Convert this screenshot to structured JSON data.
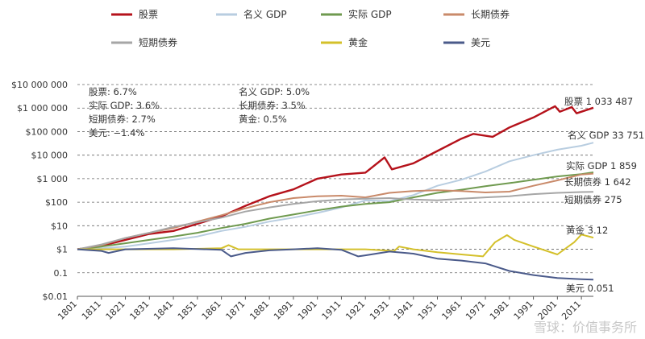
{
  "chart_data": {
    "type": "line",
    "y_scale": "log",
    "ylim": [
      0.01,
      10000000
    ],
    "xlim": [
      1801,
      2016
    ],
    "grid": true,
    "legend_position": "top",
    "y_tick_labels": [
      "$10 000 000",
      "$1 000 000",
      "$100 000",
      "$10 000",
      "$1 000",
      "$100",
      "$10",
      "$1",
      "0.1",
      "$0.01"
    ],
    "x_tick_labels": [
      "1801",
      "1811",
      "1821",
      "1831",
      "1841",
      "1851",
      "1861",
      "1871",
      "1881",
      "1891",
      "1901",
      "1911",
      "1921",
      "1931",
      "1941",
      "1951",
      "1961",
      "1971",
      "1981",
      "1991",
      "2001",
      "2011"
    ],
    "legend": [
      {
        "name": "股票",
        "color": "#b5121b"
      },
      {
        "name": "名义 GDP",
        "color": "#b8cde0"
      },
      {
        "name": "实际 GDP",
        "color": "#6f9a4f"
      },
      {
        "name": "长期债券",
        "color": "#c98a6a"
      },
      {
        "name": "短期债券",
        "color": "#a6a6a6"
      },
      {
        "name": "黄金",
        "color": "#d4c02a"
      },
      {
        "name": "美元",
        "color": "#4a5a8a"
      }
    ],
    "annotations_left": [
      "股票: 6.7%",
      "实际 GDP: 3.6%",
      "短期债券: 2.7%",
      "美元: −1.4%"
    ],
    "annotations_middle": [
      "名义 GDP: 5.0%",
      "长期债券: 3.5%",
      "黄金: 0.5%"
    ],
    "series": [
      {
        "name": "股票",
        "color": "#b5121b",
        "end_label": "股票 1 033 487",
        "points": [
          [
            1801,
            1
          ],
          [
            1811,
            1.4
          ],
          [
            1821,
            2.5
          ],
          [
            1831,
            4.5
          ],
          [
            1841,
            6
          ],
          [
            1851,
            12
          ],
          [
            1861,
            25
          ],
          [
            1871,
            70
          ],
          [
            1881,
            180
          ],
          [
            1891,
            350
          ],
          [
            1901,
            1000
          ],
          [
            1911,
            1500
          ],
          [
            1921,
            1800
          ],
          [
            1929,
            8000
          ],
          [
            1932,
            2500
          ],
          [
            1941,
            4500
          ],
          [
            1951,
            15000
          ],
          [
            1961,
            50000
          ],
          [
            1966,
            80000
          ],
          [
            1974,
            60000
          ],
          [
            1981,
            150000
          ],
          [
            1991,
            400000
          ],
          [
            2000,
            1200000
          ],
          [
            2002,
            700000
          ],
          [
            2007,
            1100000
          ],
          [
            2009,
            600000
          ],
          [
            2016,
            1033487
          ]
        ]
      },
      {
        "name": "名义 GDP",
        "color": "#b8cde0",
        "end_label": "名义 GDP 33 751",
        "points": [
          [
            1801,
            1
          ],
          [
            1811,
            1.1
          ],
          [
            1821,
            1.3
          ],
          [
            1831,
            1.8
          ],
          [
            1841,
            2.5
          ],
          [
            1851,
            3.5
          ],
          [
            1861,
            6
          ],
          [
            1871,
            9
          ],
          [
            1881,
            15
          ],
          [
            1891,
            22
          ],
          [
            1901,
            35
          ],
          [
            1911,
            60
          ],
          [
            1921,
            120
          ],
          [
            1931,
            110
          ],
          [
            1941,
            200
          ],
          [
            1951,
            500
          ],
          [
            1961,
            900
          ],
          [
            1971,
            2000
          ],
          [
            1981,
            5500
          ],
          [
            1991,
            10000
          ],
          [
            2001,
            17000
          ],
          [
            2011,
            25000
          ],
          [
            2016,
            33751
          ]
        ]
      },
      {
        "name": "实际 GDP",
        "color": "#6f9a4f",
        "end_label": "实际 GDP 1 859",
        "points": [
          [
            1801,
            1
          ],
          [
            1811,
            1.3
          ],
          [
            1821,
            1.8
          ],
          [
            1831,
            2.5
          ],
          [
            1841,
            3.5
          ],
          [
            1851,
            5
          ],
          [
            1861,
            8
          ],
          [
            1871,
            12
          ],
          [
            1881,
            20
          ],
          [
            1891,
            30
          ],
          [
            1901,
            45
          ],
          [
            1911,
            65
          ],
          [
            1921,
            85
          ],
          [
            1931,
            100
          ],
          [
            1941,
            160
          ],
          [
            1951,
            250
          ],
          [
            1961,
            340
          ],
          [
            1971,
            480
          ],
          [
            1981,
            650
          ],
          [
            1991,
            900
          ],
          [
            2001,
            1250
          ],
          [
            2011,
            1550
          ],
          [
            2016,
            1859
          ]
        ]
      },
      {
        "name": "长期债券",
        "color": "#c98a6a",
        "end_label": "长期债券 1 642",
        "points": [
          [
            1801,
            1
          ],
          [
            1811,
            1.5
          ],
          [
            1821,
            3
          ],
          [
            1831,
            5
          ],
          [
            1841,
            8
          ],
          [
            1851,
            15
          ],
          [
            1861,
            28
          ],
          [
            1871,
            55
          ],
          [
            1881,
            100
          ],
          [
            1891,
            150
          ],
          [
            1901,
            180
          ],
          [
            1911,
            190
          ],
          [
            1921,
            160
          ],
          [
            1931,
            250
          ],
          [
            1941,
            300
          ],
          [
            1951,
            320
          ],
          [
            1961,
            300
          ],
          [
            1971,
            260
          ],
          [
            1981,
            280
          ],
          [
            1991,
            500
          ],
          [
            2001,
            850
          ],
          [
            2011,
            1500
          ],
          [
            2016,
            1642
          ]
        ]
      },
      {
        "name": "短期债券",
        "color": "#a6a6a6",
        "end_label": "短期债券 275",
        "points": [
          [
            1801,
            1
          ],
          [
            1811,
            1.6
          ],
          [
            1821,
            3
          ],
          [
            1831,
            5
          ],
          [
            1841,
            9
          ],
          [
            1851,
            14
          ],
          [
            1861,
            22
          ],
          [
            1871,
            40
          ],
          [
            1881,
            60
          ],
          [
            1891,
            85
          ],
          [
            1901,
            110
          ],
          [
            1911,
            130
          ],
          [
            1921,
            140
          ],
          [
            1931,
            150
          ],
          [
            1941,
            130
          ],
          [
            1951,
            120
          ],
          [
            1961,
            140
          ],
          [
            1971,
            160
          ],
          [
            1981,
            180
          ],
          [
            1991,
            220
          ],
          [
            2001,
            250
          ],
          [
            2011,
            270
          ],
          [
            2016,
            275
          ]
        ]
      },
      {
        "name": "黄金",
        "color": "#d4c02a",
        "end_label": "黄金 3.12",
        "points": [
          [
            1801,
            1
          ],
          [
            1821,
            1
          ],
          [
            1841,
            1
          ],
          [
            1861,
            1.1
          ],
          [
            1864,
            1.5
          ],
          [
            1868,
            1
          ],
          [
            1881,
            1
          ],
          [
            1901,
            1
          ],
          [
            1921,
            1
          ],
          [
            1933,
            0.85
          ],
          [
            1935,
            1.3
          ],
          [
            1941,
            1
          ],
          [
            1951,
            0.75
          ],
          [
            1961,
            0.6
          ],
          [
            1970,
            0.5
          ],
          [
            1975,
            2
          ],
          [
            1980,
            4
          ],
          [
            1983,
            2.5
          ],
          [
            1991,
            1.3
          ],
          [
            2001,
            0.6
          ],
          [
            2008,
            2
          ],
          [
            2011,
            4.2
          ],
          [
            2016,
            3.12
          ]
        ]
      },
      {
        "name": "美元",
        "color": "#4a5a8a",
        "end_label": "美元 0.051",
        "points": [
          [
            1801,
            1
          ],
          [
            1811,
            0.85
          ],
          [
            1814,
            0.7
          ],
          [
            1821,
            1
          ],
          [
            1841,
            1.1
          ],
          [
            1861,
            0.95
          ],
          [
            1865,
            0.5
          ],
          [
            1871,
            0.7
          ],
          [
            1881,
            0.9
          ],
          [
            1891,
            1
          ],
          [
            1901,
            1.1
          ],
          [
            1911,
            0.95
          ],
          [
            1918,
            0.5
          ],
          [
            1921,
            0.55
          ],
          [
            1931,
            0.8
          ],
          [
            1941,
            0.65
          ],
          [
            1951,
            0.4
          ],
          [
            1961,
            0.33
          ],
          [
            1971,
            0.25
          ],
          [
            1981,
            0.12
          ],
          [
            1991,
            0.08
          ],
          [
            2001,
            0.06
          ],
          [
            2011,
            0.053
          ],
          [
            2016,
            0.051
          ]
        ]
      }
    ]
  },
  "watermark": "雪球：价值事务所"
}
